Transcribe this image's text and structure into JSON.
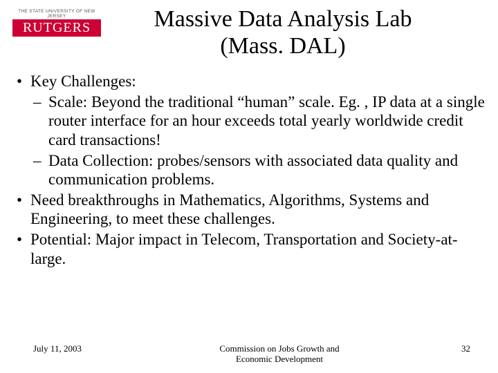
{
  "logo": {
    "tagline": "THE STATE UNIVERSITY OF NEW JERSEY",
    "name": "RUTGERS",
    "bg_color": "#cc0033",
    "text_color": "#ffffff"
  },
  "title": {
    "line1": "Massive Data Analysis Lab",
    "line2": "(Mass. DAL)",
    "fontsize": 34
  },
  "body": {
    "fontsize": 23,
    "items": [
      {
        "text": "Key Challenges:",
        "sub": [
          "Scale: Beyond the traditional “human” scale. Eg. , IP data at a single router interface for an hour exceeds total yearly worldwide credit card transactions!",
          "Data Collection: probes/sensors with associated data quality and communication problems."
        ]
      },
      {
        "text": "Need breakthroughs in Mathematics, Algorithms, Systems and Engineering, to meet these challenges."
      },
      {
        "text": "Potential: Major impact in Telecom, Transportation and Society-at-large."
      }
    ]
  },
  "footer": {
    "date": "July 11, 2003",
    "center_line1": "Commission on Jobs Growth and",
    "center_line2": "Economic Development",
    "page": "32",
    "fontsize": 13
  },
  "colors": {
    "background": "#ffffff",
    "text": "#000000"
  }
}
